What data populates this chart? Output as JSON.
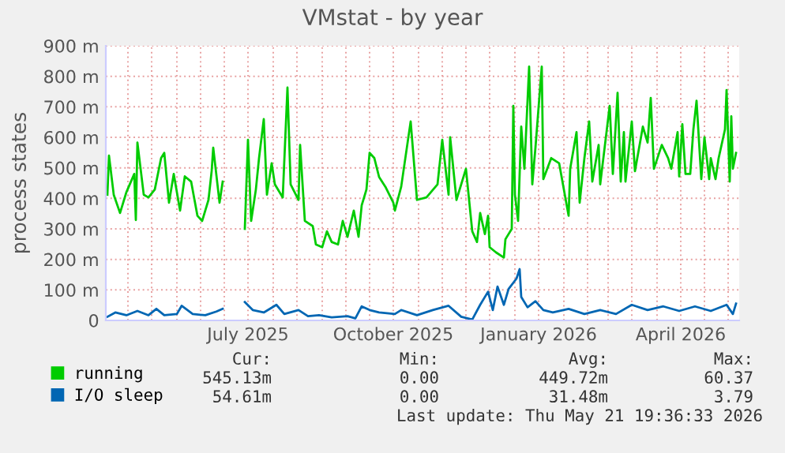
{
  "chart_data": {
    "type": "line",
    "title": "VMstat - by year",
    "ylabel": "process states",
    "xlim": [
      "2025-04-17",
      "2026-05-23"
    ],
    "xticks": [
      {
        "value": "2025-05-01",
        "label": null
      },
      {
        "value": "2025-05-16",
        "label": null
      },
      {
        "value": "2025-06-01",
        "label": null
      },
      {
        "value": "2025-06-16",
        "label": null
      },
      {
        "value": "2025-07-01",
        "label": null
      },
      {
        "value": "2025-07-16",
        "label": "July 2025"
      },
      {
        "value": "2025-08-01",
        "label": null
      },
      {
        "value": "2025-08-16",
        "label": null
      },
      {
        "value": "2025-09-01",
        "label": null
      },
      {
        "value": "2025-09-16",
        "label": null
      },
      {
        "value": "2025-10-01",
        "label": null
      },
      {
        "value": "2025-10-16",
        "label": "October 2025"
      },
      {
        "value": "2025-11-01",
        "label": null
      },
      {
        "value": "2025-11-16",
        "label": null
      },
      {
        "value": "2025-12-01",
        "label": null
      },
      {
        "value": "2025-12-16",
        "label": null
      },
      {
        "value": "2026-01-01",
        "label": null
      },
      {
        "value": "2026-01-16",
        "label": "January 2026"
      },
      {
        "value": "2026-02-01",
        "label": null
      },
      {
        "value": "2026-02-16",
        "label": null
      },
      {
        "value": "2026-03-01",
        "label": null
      },
      {
        "value": "2026-03-16",
        "label": null
      },
      {
        "value": "2026-04-01",
        "label": null
      },
      {
        "value": "2026-04-16",
        "label": "April 2026"
      },
      {
        "value": "2026-05-01",
        "label": null
      },
      {
        "value": "2026-05-16",
        "label": null
      }
    ],
    "ylim": [
      0,
      900
    ],
    "yticks": [
      0,
      {
        "value": 100,
        "label": "100 m"
      },
      {
        "value": 200,
        "label": "200 m"
      },
      {
        "value": 300,
        "label": "300 m"
      },
      {
        "value": 400,
        "label": "400 m"
      },
      {
        "value": 500,
        "label": "500 m"
      },
      {
        "value": 600,
        "label": "600 m"
      },
      {
        "value": 700,
        "label": "700 m"
      },
      {
        "value": 800,
        "label": "800 m"
      },
      {
        "value": 900,
        "label": "900 m"
      }
    ],
    "grid": true,
    "legend": "bottom",
    "series": [
      {
        "name": "running",
        "color": "#00cc00",
        "x": [
          "2025-04-18",
          "2025-04-19",
          "2025-04-22",
          "2025-04-26",
          "2025-04-30",
          "2025-05-05",
          "2025-05-06",
          "2025-05-07",
          "2025-05-11",
          "2025-05-14",
          "2025-05-18",
          "2025-05-22",
          "2025-05-24",
          "2025-05-27",
          "2025-05-30",
          "2025-06-03",
          "2025-06-06",
          "2025-06-10",
          "2025-06-14",
          "2025-06-17",
          "2025-06-21",
          "2025-06-23",
          "2025-06-24",
          "2025-06-28",
          "2025-06-30",
          "2025-07-08",
          "2025-07-14",
          "2025-07-16",
          "2025-07-18",
          "2025-07-21",
          "2025-07-23",
          "2025-07-26",
          "2025-07-28",
          "2025-07-31",
          "2025-08-02",
          "2025-08-07",
          "2025-08-10",
          "2025-08-12",
          "2025-08-17",
          "2025-08-18",
          "2025-08-21",
          "2025-08-26",
          "2025-08-28",
          "2025-09-01",
          "2025-09-04",
          "2025-09-07",
          "2025-09-11",
          "2025-09-14",
          "2025-09-17",
          "2025-09-21",
          "2025-09-24",
          "2025-09-26",
          "2025-09-29",
          "2025-10-01",
          "2025-10-04",
          "2025-10-07",
          "2025-10-11",
          "2025-10-16",
          "2025-10-17",
          "2025-10-21",
          "2025-10-27",
          "2025-10-31",
          "2025-11-06",
          "2025-11-13",
          "2025-11-16",
          "2025-11-20",
          "2025-11-21",
          "2025-11-25",
          "2025-12-01",
          "2025-12-05",
          "2025-12-08",
          "2025-12-10",
          "2025-12-13",
          "2025-12-15",
          "2025-12-16",
          "2025-12-20",
          "2025-12-25",
          "2025-12-26",
          "2025-12-30",
          "2025-12-31",
          "2026-01-01",
          "2026-01-03",
          "2026-01-05",
          "2026-01-07",
          "2026-01-10",
          "2026-01-12",
          "2026-01-14",
          "2026-01-18",
          "2026-01-19",
          "2026-01-24",
          "2026-01-29",
          "2026-02-04",
          "2026-02-05",
          "2026-02-09",
          "2026-02-11",
          "2026-02-14",
          "2026-02-17",
          "2026-02-19",
          "2026-02-23",
          "2026-02-24",
          "2026-03-02",
          "2026-03-04",
          "2026-03-07",
          "2026-03-09",
          "2026-03-11",
          "2026-03-12",
          "2026-03-16",
          "2026-03-18",
          "2026-03-23",
          "2026-03-26",
          "2026-03-28",
          "2026-03-30",
          "2026-04-04",
          "2026-04-08",
          "2026-04-10",
          "2026-04-14",
          "2026-04-15",
          "2026-04-17",
          "2026-04-19",
          "2026-04-22",
          "2026-04-24",
          "2026-04-26",
          "2026-04-29",
          "2026-05-01",
          "2026-05-04",
          "2026-05-05",
          "2026-05-08",
          "2026-05-10",
          "2026-05-14",
          "2026-05-15",
          "2026-05-17",
          "2026-05-18",
          "2026-05-19",
          "2026-05-21"
        ],
        "values": [
          412,
          540,
          412,
          352,
          420,
          480,
          329,
          583,
          412,
          403,
          429,
          532,
          549,
          386,
          480,
          360,
          472,
          455,
          343,
          326,
          395,
          489,
          566,
          386,
          455,
          null,
          300,
          592,
          326,
          429,
          532,
          660,
          412,
          515,
          446,
          403,
          763,
          446,
          395,
          575,
          326,
          309,
          249,
          240,
          292,
          257,
          249,
          326,
          274,
          360,
          274,
          377,
          429,
          549,
          532,
          470,
          438,
          386,
          360,
          438,
          652,
          395,
          403,
          446,
          592,
          412,
          600,
          395,
          497,
          292,
          257,
          352,
          283,
          343,
          240,
          223,
          206,
          266,
          300,
          703,
          412,
          326,
          635,
          497,
          832,
          446,
          566,
          832,
          463,
          532,
          515,
          343,
          497,
          617,
          386,
          532,
          652,
          455,
          575,
          446,
          703,
          480,
          746,
          455,
          617,
          455,
          652,
          489,
          635,
          583,
          729,
          497,
          575,
          532,
          497,
          617,
          472,
          643,
          480,
          480,
          626,
          720,
          463,
          600,
          463,
          532,
          463,
          532,
          626,
          755,
          455,
          669,
          497,
          549
        ]
      },
      {
        "name": "I/O sleep",
        "color": "#0066b3",
        "x": [
          "2025-04-18",
          "2025-04-23",
          "2025-04-30",
          "2025-05-07",
          "2025-05-14",
          "2025-05-19",
          "2025-05-24",
          "2025-06-01",
          "2025-06-04",
          "2025-06-11",
          "2025-06-19",
          "2025-06-26",
          "2025-06-30",
          "2025-07-08",
          "2025-07-14",
          "2025-07-19",
          "2025-07-26",
          "2025-08-03",
          "2025-08-08",
          "2025-08-17",
          "2025-08-23",
          "2025-08-30",
          "2025-09-07",
          "2025-09-17",
          "2025-09-22",
          "2025-09-26",
          "2025-10-01",
          "2025-10-07",
          "2025-10-17",
          "2025-10-21",
          "2025-10-31",
          "2025-11-10",
          "2025-11-20",
          "2025-11-28",
          "2025-12-05",
          "2025-12-10",
          "2025-12-15",
          "2025-12-18",
          "2025-12-21",
          "2025-12-25",
          "2025-12-28",
          "2026-01-02",
          "2026-01-04",
          "2026-01-05",
          "2026-01-09",
          "2026-01-14",
          "2026-01-19",
          "2026-01-25",
          "2026-02-04",
          "2026-02-14",
          "2026-02-24",
          "2026-03-06",
          "2026-03-16",
          "2026-03-26",
          "2026-04-05",
          "2026-04-15",
          "2026-04-25",
          "2026-05-05",
          "2026-05-15",
          "2026-05-19",
          "2026-05-21"
        ],
        "values": [
          12,
          26,
          17,
          31,
          17,
          38,
          17,
          21,
          48,
          21,
          17,
          29,
          38,
          null,
          60,
          34,
          26,
          51,
          21,
          34,
          14,
          17,
          10,
          14,
          7,
          46,
          34,
          26,
          21,
          34,
          17,
          34,
          48,
          12,
          3,
          51,
          94,
          34,
          111,
          51,
          103,
          137,
          168,
          77,
          43,
          63,
          34,
          26,
          38,
          21,
          34,
          21,
          51,
          34,
          46,
          31,
          46,
          31,
          51,
          21,
          55
        ]
      }
    ],
    "annotations": [
      "Cur:",
      "Min:",
      "Avg:",
      "Max:",
      "545.13m",
      "0.00",
      "449.72m",
      "60.37",
      "54.61m",
      "0.00",
      "31.48m",
      "3.79",
      "Last update: Thu May 21 19:36:33 2026"
    ]
  }
}
